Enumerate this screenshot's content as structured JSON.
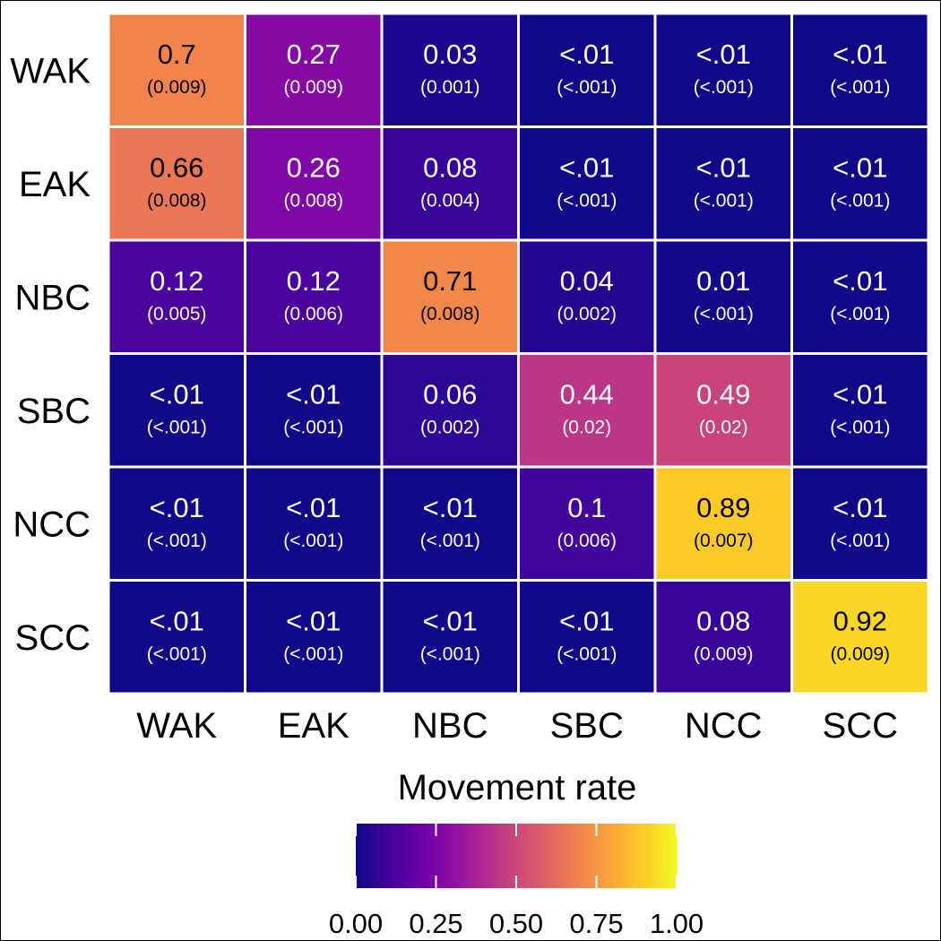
{
  "chart_data": {
    "type": "heatmap",
    "title": "",
    "xlabel": "",
    "ylabel": "",
    "rows": [
      "WAK",
      "EAK",
      "NBC",
      "SBC",
      "NCC",
      "SCC"
    ],
    "columns": [
      "WAK",
      "EAK",
      "NBC",
      "SBC",
      "NCC",
      "SCC"
    ],
    "values": [
      [
        0.7,
        0.27,
        0.03,
        0.005,
        0.005,
        0.005
      ],
      [
        0.66,
        0.26,
        0.08,
        0.005,
        0.005,
        0.005
      ],
      [
        0.12,
        0.12,
        0.71,
        0.04,
        0.01,
        0.005
      ],
      [
        0.005,
        0.005,
        0.06,
        0.44,
        0.49,
        0.005
      ],
      [
        0.005,
        0.005,
        0.005,
        0.1,
        0.89,
        0.005
      ],
      [
        0.005,
        0.005,
        0.005,
        0.005,
        0.08,
        0.92
      ]
    ],
    "value_labels": [
      [
        "0.7",
        "0.27",
        "0.03",
        "<.01",
        "<.01",
        "<.01"
      ],
      [
        "0.66",
        "0.26",
        "0.08",
        "<.01",
        "<.01",
        "<.01"
      ],
      [
        "0.12",
        "0.12",
        "0.71",
        "0.04",
        "0.01",
        "<.01"
      ],
      [
        "<.01",
        "<.01",
        "0.06",
        "0.44",
        "0.49",
        "<.01"
      ],
      [
        "<.01",
        "<.01",
        "<.01",
        "0.1",
        "0.89",
        "<.01"
      ],
      [
        "<.01",
        "<.01",
        "<.01",
        "<.01",
        "0.08",
        "0.92"
      ]
    ],
    "se_labels": [
      [
        "(0.009)",
        "(0.009)",
        "(0.001)",
        "(<.001)",
        "(<.001)",
        "(<.001)"
      ],
      [
        "(0.008)",
        "(0.008)",
        "(0.004)",
        "(<.001)",
        "(<.001)",
        "(<.001)"
      ],
      [
        "(0.005)",
        "(0.006)",
        "(0.008)",
        "(0.002)",
        "(<.001)",
        "(<.001)"
      ],
      [
        "(<.001)",
        "(<.001)",
        "(0.002)",
        "(0.02)",
        "(0.02)",
        "(<.001)"
      ],
      [
        "(<.001)",
        "(<.001)",
        "(<.001)",
        "(0.006)",
        "(0.007)",
        "(<.001)"
      ],
      [
        "(<.001)",
        "(<.001)",
        "(<.001)",
        "(<.001)",
        "(0.009)",
        "(0.009)"
      ]
    ],
    "legend": {
      "title": "Movement rate",
      "range": [
        0,
        1
      ],
      "ticks": [
        0,
        0.25,
        0.5,
        0.75,
        1
      ],
      "tick_labels": [
        "0.00",
        "0.25",
        "0.50",
        "0.75",
        "1.00"
      ],
      "placement": "bottom",
      "colormap": "plasma"
    },
    "grid": false,
    "colors": {
      "plasma_stops": [
        "#0d0887",
        "#41049d",
        "#6a00a8",
        "#8f0da4",
        "#b12a90",
        "#cc4778",
        "#e16462",
        "#f2844b",
        "#fca636",
        "#fcce25",
        "#f0f921"
      ],
      "cell_border": "#ffffff",
      "text_dark": "#000000",
      "text_light": "#ffffff"
    }
  }
}
